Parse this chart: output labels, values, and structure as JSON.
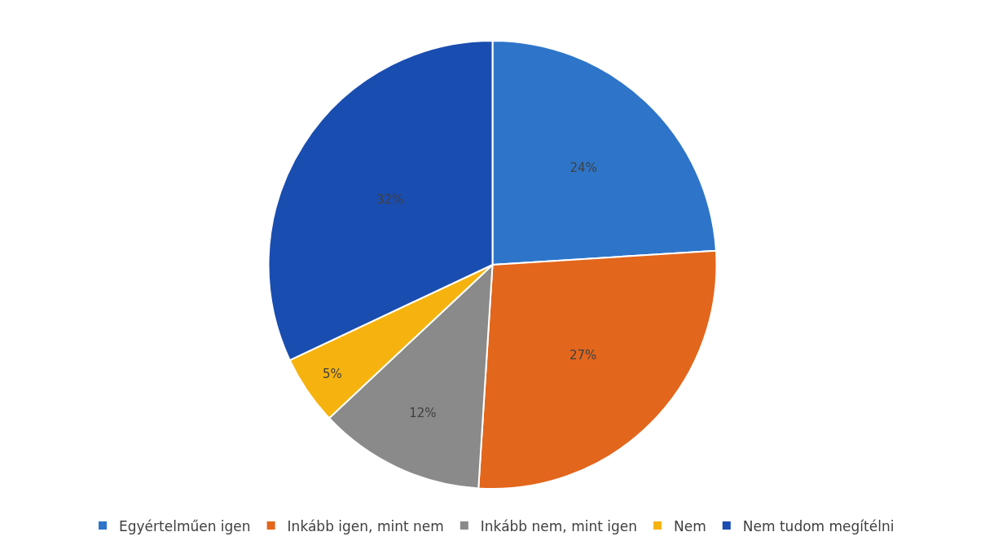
{
  "chart_data": {
    "type": "pie",
    "categories": [
      "Egyértelműen igen",
      "Inkább igen, mint nem",
      "Inkább nem, mint igen",
      "Nem",
      "Nem tudom megítélni"
    ],
    "values": [
      24,
      27,
      12,
      5,
      32
    ],
    "value_labels": [
      "24%",
      "27%",
      "12%",
      "5%",
      "32%"
    ],
    "colors": [
      "#2e75c9",
      "#e2661c",
      "#8a8a8a",
      "#f6b30f",
      "#1a4db0"
    ],
    "legend": "bottom"
  }
}
